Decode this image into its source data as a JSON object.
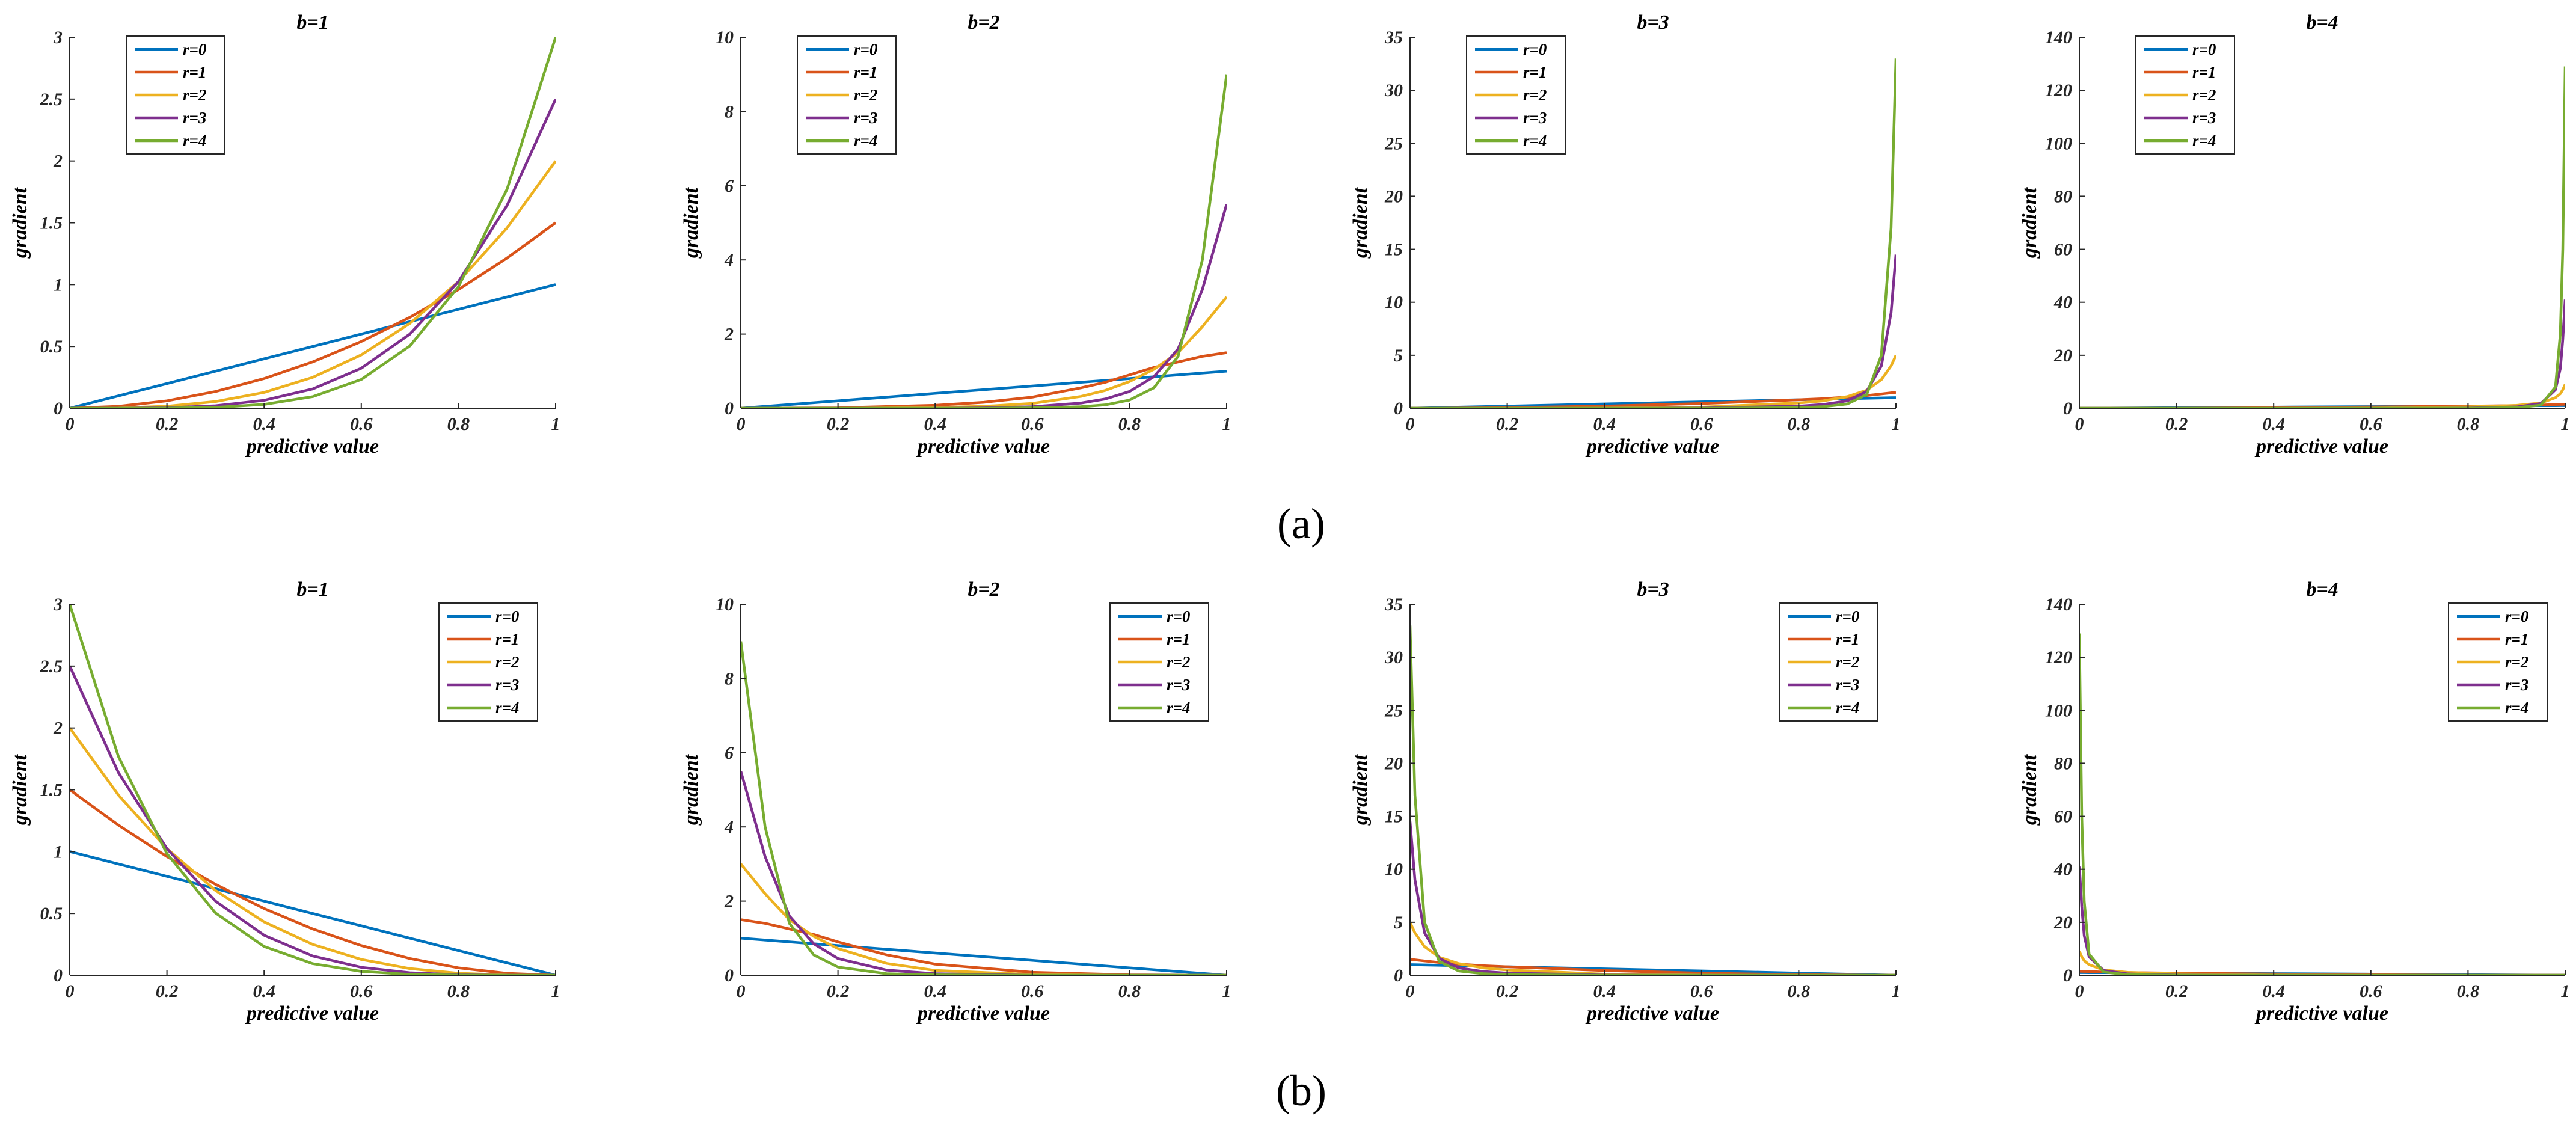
{
  "figure": {
    "panel_labels": [
      "(a)",
      "(b)"
    ]
  },
  "chart_data": [
    {
      "type": "line",
      "row": "a",
      "title": "b=1",
      "xlabel": "predictive value",
      "ylabel": "gradient",
      "xlim": [
        0,
        1
      ],
      "ylim": [
        0,
        3
      ],
      "xticks": [
        "0",
        "0.2",
        "0.4",
        "0.6",
        "0.8",
        "1"
      ],
      "yticks": [
        "0",
        "0.5",
        "1",
        "1.5",
        "2",
        "2.5",
        "3"
      ],
      "legend_position": "top-left",
      "x": [
        0,
        0.1,
        0.2,
        0.3,
        0.4,
        0.5,
        0.6,
        0.7,
        0.8,
        0.9,
        1
      ],
      "series": [
        {
          "name": "r=0",
          "color": "#0072BD",
          "values": [
            0,
            0.1,
            0.2,
            0.3,
            0.4,
            0.5,
            0.6,
            0.7,
            0.8,
            0.9,
            1
          ]
        },
        {
          "name": "r=1",
          "color": "#D95319",
          "values": [
            0,
            0.015,
            0.06,
            0.135,
            0.24,
            0.375,
            0.54,
            0.735,
            0.96,
            1.215,
            1.5
          ]
        },
        {
          "name": "r=2",
          "color": "#EDB120",
          "values": [
            0,
            0.002,
            0.016,
            0.054,
            0.128,
            0.25,
            0.432,
            0.686,
            1.024,
            1.458,
            2
          ]
        },
        {
          "name": "r=3",
          "color": "#7E2F8E",
          "values": [
            0,
            0.0003,
            0.004,
            0.02,
            0.064,
            0.156,
            0.324,
            0.6,
            1.024,
            1.64,
            2.5
          ]
        },
        {
          "name": "r=4",
          "color": "#77AC30",
          "values": [
            0,
            0,
            0.001,
            0.007,
            0.031,
            0.094,
            0.233,
            0.504,
            0.983,
            1.771,
            3
          ]
        }
      ]
    },
    {
      "type": "line",
      "row": "a",
      "title": "b=2",
      "xlabel": "predictive value",
      "ylabel": "gradient",
      "xlim": [
        0,
        1
      ],
      "ylim": [
        0,
        10
      ],
      "xticks": [
        "0",
        "0.2",
        "0.4",
        "0.6",
        "0.8",
        "1"
      ],
      "yticks": [
        "0",
        "2",
        "4",
        "6",
        "8",
        "10"
      ],
      "legend_position": "top-left",
      "x": [
        0,
        0.2,
        0.4,
        0.5,
        0.6,
        0.7,
        0.75,
        0.8,
        0.85,
        0.9,
        0.95,
        1
      ],
      "series": [
        {
          "name": "r=0",
          "color": "#0072BD",
          "values": [
            0,
            0.2,
            0.4,
            0.5,
            0.6,
            0.7,
            0.75,
            0.8,
            0.85,
            0.9,
            0.95,
            1
          ]
        },
        {
          "name": "r=1",
          "color": "#D95319",
          "values": [
            0,
            0.01,
            0.08,
            0.16,
            0.3,
            0.55,
            0.7,
            0.9,
            1.1,
            1.25,
            1.4,
            1.5
          ]
        },
        {
          "name": "r=2",
          "color": "#EDB120",
          "values": [
            0,
            0,
            0.02,
            0.05,
            0.13,
            0.32,
            0.48,
            0.72,
            1.05,
            1.5,
            2.2,
            3
          ]
        },
        {
          "name": "r=3",
          "color": "#7E2F8E",
          "values": [
            0,
            0,
            0,
            0.01,
            0.04,
            0.14,
            0.25,
            0.45,
            0.85,
            1.6,
            3.2,
            5.5
          ]
        },
        {
          "name": "r=4",
          "color": "#77AC30",
          "values": [
            0,
            0,
            0,
            0,
            0.01,
            0.04,
            0.09,
            0.22,
            0.55,
            1.4,
            4.0,
            9
          ]
        }
      ]
    },
    {
      "type": "line",
      "row": "a",
      "title": "b=3",
      "xlabel": "predictive value",
      "ylabel": "gradient",
      "xlim": [
        0,
        1
      ],
      "ylim": [
        0,
        35
      ],
      "xticks": [
        "0",
        "0.2",
        "0.4",
        "0.6",
        "0.8",
        "1"
      ],
      "yticks": [
        "0",
        "5",
        "10",
        "15",
        "20",
        "25",
        "30",
        "35"
      ],
      "legend_position": "top-left",
      "x": [
        0,
        0.2,
        0.4,
        0.6,
        0.8,
        0.85,
        0.9,
        0.94,
        0.97,
        0.99,
        1
      ],
      "series": [
        {
          "name": "r=0",
          "color": "#0072BD",
          "values": [
            0,
            0.2,
            0.4,
            0.6,
            0.8,
            0.85,
            0.9,
            0.94,
            0.97,
            0.99,
            1
          ]
        },
        {
          "name": "r=1",
          "color": "#D95319",
          "values": [
            0,
            0.05,
            0.2,
            0.45,
            0.8,
            0.9,
            1.05,
            1.2,
            1.35,
            1.45,
            1.5
          ]
        },
        {
          "name": "r=2",
          "color": "#EDB120",
          "values": [
            0,
            0,
            0.02,
            0.1,
            0.5,
            0.7,
            1.1,
            1.7,
            2.7,
            4.0,
            5
          ]
        },
        {
          "name": "r=3",
          "color": "#7E2F8E",
          "values": [
            0,
            0,
            0,
            0.02,
            0.2,
            0.35,
            0.7,
            1.6,
            4.0,
            9.0,
            14.5
          ]
        },
        {
          "name": "r=4",
          "color": "#77AC30",
          "values": [
            0,
            0,
            0,
            0,
            0.05,
            0.15,
            0.4,
            1.3,
            5.0,
            17.0,
            33
          ]
        }
      ]
    },
    {
      "type": "line",
      "row": "a",
      "title": "b=4",
      "xlabel": "predictive value",
      "ylabel": "gradient",
      "xlim": [
        0,
        1
      ],
      "ylim": [
        0,
        140
      ],
      "xticks": [
        "0",
        "0.2",
        "0.4",
        "0.6",
        "0.8",
        "1"
      ],
      "yticks": [
        "0",
        "20",
        "40",
        "60",
        "80",
        "100",
        "120",
        "140"
      ],
      "legend_position": "top-left",
      "x": [
        0,
        0.2,
        0.4,
        0.6,
        0.8,
        0.9,
        0.95,
        0.98,
        0.99,
        0.995,
        1
      ],
      "series": [
        {
          "name": "r=0",
          "color": "#0072BD",
          "values": [
            0,
            0.2,
            0.4,
            0.6,
            0.8,
            0.9,
            0.95,
            0.98,
            0.99,
            0.995,
            1
          ]
        },
        {
          "name": "r=1",
          "color": "#D95319",
          "values": [
            0,
            0.05,
            0.2,
            0.45,
            0.8,
            1.0,
            1.2,
            1.4,
            1.45,
            1.48,
            1.5
          ]
        },
        {
          "name": "r=2",
          "color": "#EDB120",
          "values": [
            0,
            0,
            0.02,
            0.1,
            0.5,
            1.1,
            2.0,
            4.0,
            5.5,
            7.0,
            9
          ]
        },
        {
          "name": "r=3",
          "color": "#7E2F8E",
          "values": [
            0,
            0,
            0,
            0.01,
            0.1,
            0.5,
            1.8,
            7.0,
            15.0,
            26.0,
            41
          ]
        },
        {
          "name": "r=4",
          "color": "#77AC30",
          "values": [
            0,
            0,
            0,
            0,
            0.02,
            0.2,
            1.2,
            8.0,
            28.0,
            60.0,
            129
          ]
        }
      ]
    },
    {
      "type": "line",
      "row": "b",
      "title": "b=1",
      "xlabel": "predictive value",
      "ylabel": "gradient",
      "xlim": [
        0,
        1
      ],
      "ylim": [
        0,
        3
      ],
      "xticks": [
        "0",
        "0.2",
        "0.4",
        "0.6",
        "0.8",
        "1"
      ],
      "yticks": [
        "0",
        "0.5",
        "1",
        "1.5",
        "2",
        "2.5",
        "3"
      ],
      "legend_position": "top-right",
      "x": [
        0,
        0.1,
        0.2,
        0.3,
        0.4,
        0.5,
        0.6,
        0.7,
        0.8,
        0.9,
        1
      ],
      "series": [
        {
          "name": "r=0",
          "color": "#0072BD",
          "values": [
            1,
            0.9,
            0.8,
            0.7,
            0.6,
            0.5,
            0.4,
            0.3,
            0.2,
            0.1,
            0
          ]
        },
        {
          "name": "r=1",
          "color": "#D95319",
          "values": [
            1.5,
            1.215,
            0.96,
            0.735,
            0.54,
            0.375,
            0.24,
            0.135,
            0.06,
            0.015,
            0
          ]
        },
        {
          "name": "r=2",
          "color": "#EDB120",
          "values": [
            2,
            1.458,
            1.024,
            0.686,
            0.432,
            0.25,
            0.128,
            0.054,
            0.016,
            0.002,
            0
          ]
        },
        {
          "name": "r=3",
          "color": "#7E2F8E",
          "values": [
            2.5,
            1.64,
            1.024,
            0.6,
            0.324,
            0.156,
            0.064,
            0.02,
            0.004,
            0.0003,
            0
          ]
        },
        {
          "name": "r=4",
          "color": "#77AC30",
          "values": [
            3,
            1.771,
            0.983,
            0.504,
            0.233,
            0.094,
            0.031,
            0.007,
            0.001,
            0,
            0
          ]
        }
      ]
    },
    {
      "type": "line",
      "row": "b",
      "title": "b=2",
      "xlabel": "predictive value",
      "ylabel": "gradient",
      "xlim": [
        0,
        1
      ],
      "ylim": [
        0,
        10
      ],
      "xticks": [
        "0",
        "0.2",
        "0.4",
        "0.6",
        "0.8",
        "1"
      ],
      "yticks": [
        "0",
        "2",
        "4",
        "6",
        "8",
        "10"
      ],
      "legend_position": "top-right",
      "x": [
        0,
        0.05,
        0.1,
        0.15,
        0.2,
        0.3,
        0.4,
        0.6,
        0.8,
        1
      ],
      "series": [
        {
          "name": "r=0",
          "color": "#0072BD",
          "values": [
            1,
            0.95,
            0.9,
            0.85,
            0.8,
            0.7,
            0.6,
            0.4,
            0.2,
            0
          ]
        },
        {
          "name": "r=1",
          "color": "#D95319",
          "values": [
            1.5,
            1.4,
            1.25,
            1.1,
            0.9,
            0.55,
            0.3,
            0.08,
            0.01,
            0
          ]
        },
        {
          "name": "r=2",
          "color": "#EDB120",
          "values": [
            3,
            2.2,
            1.5,
            1.05,
            0.72,
            0.32,
            0.13,
            0.02,
            0,
            0
          ]
        },
        {
          "name": "r=3",
          "color": "#7E2F8E",
          "values": [
            5.5,
            3.2,
            1.6,
            0.85,
            0.45,
            0.14,
            0.04,
            0,
            0,
            0
          ]
        },
        {
          "name": "r=4",
          "color": "#77AC30",
          "values": [
            9,
            4.0,
            1.4,
            0.55,
            0.22,
            0.04,
            0.01,
            0,
            0,
            0
          ]
        }
      ]
    },
    {
      "type": "line",
      "row": "b",
      "title": "b=3",
      "xlabel": "predictive value",
      "ylabel": "gradient",
      "xlim": [
        0,
        1
      ],
      "ylim": [
        0,
        35
      ],
      "xticks": [
        "0",
        "0.2",
        "0.4",
        "0.6",
        "0.8",
        "1"
      ],
      "yticks": [
        "0",
        "5",
        "10",
        "15",
        "20",
        "25",
        "30",
        "35"
      ],
      "legend_position": "top-right",
      "x": [
        0,
        0.01,
        0.03,
        0.06,
        0.1,
        0.15,
        0.2,
        0.4,
        0.6,
        0.8,
        1
      ],
      "series": [
        {
          "name": "r=0",
          "color": "#0072BD",
          "values": [
            1,
            0.99,
            0.97,
            0.94,
            0.9,
            0.85,
            0.8,
            0.6,
            0.4,
            0.2,
            0
          ]
        },
        {
          "name": "r=1",
          "color": "#D95319",
          "values": [
            1.5,
            1.45,
            1.35,
            1.2,
            1.05,
            0.9,
            0.8,
            0.45,
            0.2,
            0.05,
            0
          ]
        },
        {
          "name": "r=2",
          "color": "#EDB120",
          "values": [
            5,
            4.0,
            2.7,
            1.7,
            1.1,
            0.7,
            0.5,
            0.1,
            0.02,
            0,
            0
          ]
        },
        {
          "name": "r=3",
          "color": "#7E2F8E",
          "values": [
            14.5,
            9.0,
            4.0,
            1.6,
            0.7,
            0.35,
            0.2,
            0.02,
            0,
            0,
            0
          ]
        },
        {
          "name": "r=4",
          "color": "#77AC30",
          "values": [
            33,
            17.0,
            5.0,
            1.3,
            0.4,
            0.15,
            0.05,
            0,
            0,
            0,
            0
          ]
        }
      ]
    },
    {
      "type": "line",
      "row": "b",
      "title": "b=4",
      "xlabel": "predictive value",
      "ylabel": "gradient",
      "xlim": [
        0,
        1
      ],
      "ylim": [
        0,
        140
      ],
      "xticks": [
        "0",
        "0.2",
        "0.4",
        "0.6",
        "0.8",
        "1"
      ],
      "yticks": [
        "0",
        "20",
        "40",
        "60",
        "80",
        "100",
        "120",
        "140"
      ],
      "legend_position": "top-right",
      "x": [
        0,
        0.005,
        0.01,
        0.02,
        0.05,
        0.1,
        0.2,
        0.4,
        0.6,
        0.8,
        1
      ],
      "series": [
        {
          "name": "r=0",
          "color": "#0072BD",
          "values": [
            1,
            0.995,
            0.99,
            0.98,
            0.95,
            0.9,
            0.8,
            0.6,
            0.4,
            0.2,
            0
          ]
        },
        {
          "name": "r=1",
          "color": "#D95319",
          "values": [
            1.5,
            1.48,
            1.45,
            1.4,
            1.2,
            1.0,
            0.8,
            0.45,
            0.2,
            0.05,
            0
          ]
        },
        {
          "name": "r=2",
          "color": "#EDB120",
          "values": [
            9,
            7.0,
            5.5,
            4.0,
            2.0,
            1.1,
            0.5,
            0.1,
            0.02,
            0,
            0
          ]
        },
        {
          "name": "r=3",
          "color": "#7E2F8E",
          "values": [
            41,
            26.0,
            15.0,
            7.0,
            1.8,
            0.5,
            0.1,
            0.01,
            0,
            0,
            0
          ]
        },
        {
          "name": "r=4",
          "color": "#77AC30",
          "values": [
            129,
            60.0,
            28.0,
            8.0,
            1.2,
            0.2,
            0.02,
            0,
            0,
            0,
            0
          ]
        }
      ]
    }
  ]
}
